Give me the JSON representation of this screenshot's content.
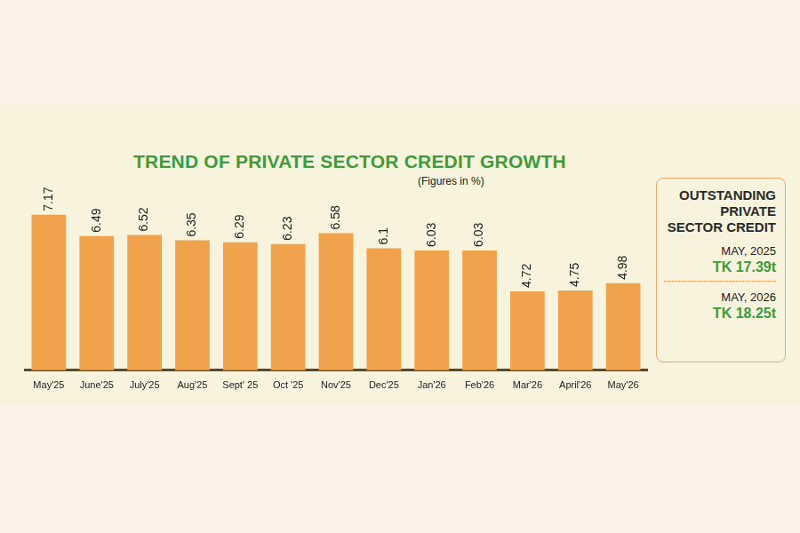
{
  "chart_data": {
    "type": "bar",
    "title": "TREND OF PRIVATE SECTOR CREDIT GROWTH",
    "subtitle": "(Figures in %)",
    "categories": [
      "May'25",
      "June'25",
      "July'25",
      "Aug'25",
      "Sept' 25",
      "Oct '25",
      "Nov'25",
      "Dec'25",
      "Jan'26",
      "Feb'26",
      "Mar'26",
      "April'26",
      "May'26"
    ],
    "values": [
      7.17,
      6.49,
      6.52,
      6.35,
      6.29,
      6.23,
      6.58,
      6.1,
      6.03,
      6.03,
      4.72,
      4.75,
      4.98
    ],
    "color": "#f0a24c",
    "ylim": [
      2.2,
      7.9
    ],
    "grid": false,
    "data_labels": true,
    "tick_labels": "x",
    "side_panel": {
      "title": "OUTSTANDING PRIVATE SECTOR CREDIT",
      "items": [
        {
          "label": "MAY, 2025",
          "value": "TK 17.39t"
        },
        {
          "label": "MAY, 2026",
          "value": "TK 18.25t"
        }
      ]
    }
  }
}
